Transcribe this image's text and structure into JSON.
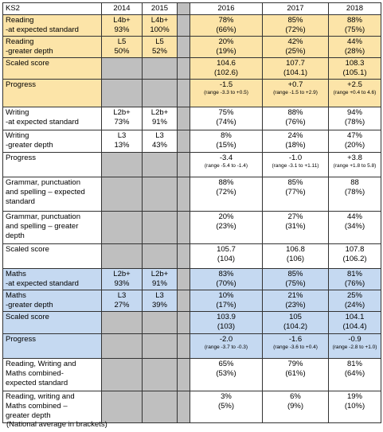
{
  "header": {
    "title": "KS2",
    "years": [
      "2014",
      "2015",
      "2016",
      "2017",
      "2018"
    ]
  },
  "rows": [
    {
      "label": [
        "Reading",
        "-at expected standard"
      ],
      "color": "#fce4a8",
      "cells": [
        [
          "L4b+",
          "93%"
        ],
        [
          "L4b+",
          "100%"
        ],
        [
          "78%",
          "(66%)"
        ],
        [
          "85%",
          "(72%)"
        ],
        [
          "88%",
          "(75%)"
        ]
      ]
    },
    {
      "label": [
        "Reading",
        "-greater depth"
      ],
      "color": "#fce4a8",
      "cells": [
        [
          "L5",
          "50%"
        ],
        [
          "L5",
          "52%"
        ],
        [
          "20%",
          "(19%)"
        ],
        [
          "42%",
          "(25%)"
        ],
        [
          "44%",
          "(28%)"
        ]
      ]
    },
    {
      "label": [
        "Scaled score"
      ],
      "color": "#fce4a8",
      "cells": [
        null,
        null,
        [
          "104.6",
          "(102.6)"
        ],
        [
          "107.7",
          "(104.1)"
        ],
        [
          "108.3",
          "(105.1)"
        ]
      ]
    },
    {
      "label": [
        "Progress"
      ],
      "color": "#fce4a8",
      "cells": [
        null,
        null,
        [
          "-1.5",
          "(range -3.3 to +0.5)"
        ],
        [
          "+0.7",
          "(range -1.5 to +2.9)"
        ],
        [
          "+2.5",
          "(range +0.4 to 4.6)"
        ]
      ]
    },
    {
      "label": [
        "Writing",
        "-at expected standard"
      ],
      "color": "#ffffff",
      "cells": [
        [
          "L2b+",
          "73%"
        ],
        [
          "L2b+",
          "91%"
        ],
        [
          "75%",
          "(74%)"
        ],
        [
          "88%",
          "(76%)"
        ],
        [
          "94%",
          "(78%)"
        ]
      ]
    },
    {
      "label": [
        "Writing",
        "-greater depth"
      ],
      "color": "#ffffff",
      "cells": [
        [
          "L3",
          "13%"
        ],
        [
          "L3",
          "43%"
        ],
        [
          "8%",
          "(15%)"
        ],
        [
          "24%",
          "(18%)"
        ],
        [
          "47%",
          "(20%)"
        ]
      ]
    },
    {
      "label": [
        "Progress"
      ],
      "color": "#ffffff",
      "cells": [
        null,
        null,
        [
          "-3.4",
          "(range -5.4 to -1.4)"
        ],
        [
          "-1.0",
          "(range -3.1 to +1.11)"
        ],
        [
          "+3.8",
          "(range +1.8 to 5.8)"
        ]
      ]
    },
    {
      "label": [
        "Grammar, punctuation",
        "and spelling – expected",
        "standard"
      ],
      "color": "#ffffff",
      "cells": [
        null,
        null,
        [
          "88%",
          "(72%)"
        ],
        [
          "85%",
          "(77%)"
        ],
        [
          "88",
          "(78%)"
        ]
      ]
    },
    {
      "label": [
        "Grammar, punctuation",
        "and spelling – greater",
        "depth"
      ],
      "color": "#ffffff",
      "cells": [
        null,
        null,
        [
          "20%",
          "(23%)"
        ],
        [
          "27%",
          "(31%)"
        ],
        [
          "44%",
          "(34%)"
        ]
      ]
    },
    {
      "label": [
        "Scaled score"
      ],
      "color": "#ffffff",
      "cells": [
        null,
        null,
        [
          "105.7",
          "(104)"
        ],
        [
          "106.8",
          "(106)"
        ],
        [
          "107.8",
          "(106.2)"
        ]
      ]
    },
    {
      "label": [
        "Maths",
        "-at expected standard"
      ],
      "color": "#c5d9f1",
      "cells": [
        [
          "L2b+",
          "93%"
        ],
        [
          "L2b+",
          "91%"
        ],
        [
          "83%",
          "(70%)"
        ],
        [
          "85%",
          "(75%)"
        ],
        [
          "81%",
          "(76%)"
        ]
      ]
    },
    {
      "label": [
        "Maths",
        "-greater depth"
      ],
      "color": "#c5d9f1",
      "cells": [
        [
          "L3",
          "27%"
        ],
        [
          "L3",
          "39%"
        ],
        [
          "10%",
          "(17%)"
        ],
        [
          "21%",
          "(23%)"
        ],
        [
          "25%",
          "(24%)"
        ]
      ]
    },
    {
      "label": [
        "Scaled score"
      ],
      "color": "#c5d9f1",
      "cells": [
        null,
        null,
        [
          "103.9",
          "(103)"
        ],
        [
          "105",
          "(104.2)"
        ],
        [
          "104.1",
          "(104.4)"
        ]
      ]
    },
    {
      "label": [
        "Progress"
      ],
      "color": "#c5d9f1",
      "cells": [
        null,
        null,
        [
          "-2.0",
          "(range -3.7 to -0.3)"
        ],
        [
          "-1.6",
          "(range -3.6 to +0.4)"
        ],
        [
          "-0.9",
          "(range -2.8 to +1.0)"
        ]
      ]
    },
    {
      "label": [
        "Reading, Writing and",
        "Maths combined-",
        "expected standard"
      ],
      "color": "#ffffff",
      "cells": [
        null,
        null,
        [
          "65%",
          "(53%)"
        ],
        [
          "79%",
          "(61%)"
        ],
        [
          "81%",
          "(64%)"
        ]
      ]
    },
    {
      "label": [
        "Reading, writing and",
        "Maths combined –",
        "greater depth"
      ],
      "color": "#ffffff",
      "cells": [
        null,
        null,
        [
          "3%",
          "(5%)"
        ],
        [
          "6%",
          "(9%)"
        ],
        [
          "19%",
          "(10%)"
        ]
      ]
    }
  ],
  "note": "(National average in brackets)"
}
